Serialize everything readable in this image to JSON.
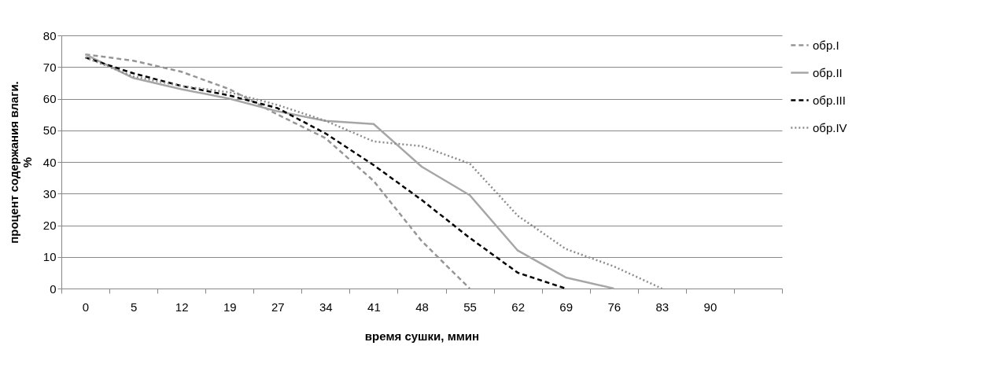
{
  "chart_data": {
    "type": "line",
    "xlabel": "время сушки, ммин",
    "ylabel": "процент содержания влаги. %",
    "categories": [
      "0",
      "5",
      "12",
      "19",
      "27",
      "34",
      "41",
      "48",
      "55",
      "62",
      "69",
      "76",
      "83",
      "90",
      null
    ],
    "ylim": [
      0,
      80
    ],
    "yticks": [
      0,
      10,
      20,
      30,
      40,
      50,
      60,
      70,
      80
    ],
    "grid": "y",
    "legend": "right",
    "marker": "none",
    "series": [
      {
        "name": "обр.I",
        "color": "#969696",
        "line_style": "dashed",
        "values": [
          74,
          72,
          68.5,
          63,
          55,
          47.5,
          34,
          15,
          0,
          null,
          null,
          null,
          null,
          null,
          null
        ]
      },
      {
        "name": "обр.II",
        "color": "#a6a6a6",
        "line_style": "solid",
        "values": [
          74,
          66.5,
          63,
          60,
          56,
          53,
          52,
          38.5,
          29.5,
          12,
          3.5,
          0,
          null,
          null,
          null
        ]
      },
      {
        "name": "обр.III",
        "color": "#000000",
        "line_style": "dashed",
        "values": [
          73,
          68,
          64,
          61,
          57,
          49,
          39,
          28,
          16,
          5,
          0,
          null,
          null,
          null,
          null
        ]
      },
      {
        "name": "обр.IV",
        "color": "#8c8c8c",
        "line_style": "dotted",
        "values": [
          73,
          67,
          64,
          62,
          58,
          53,
          46.5,
          45,
          39.5,
          23,
          12.5,
          7,
          0,
          null,
          null
        ]
      }
    ]
  }
}
